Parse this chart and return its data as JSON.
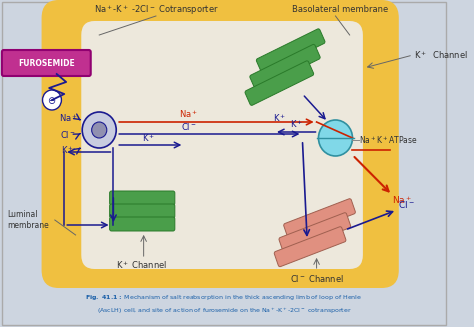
{
  "fig_bg": "#cdd5e0",
  "outer_cell_color": "#f0c040",
  "outer_cell_edge": "#d4a020",
  "inner_cell_color": "#ede8dc",
  "furosemide_box_color": "#c03090",
  "furosemide_text": "FUROSEMIDE",
  "title_top_left": "Na$^+$-K$^+$ -2Cl$^-$ Cotransporter",
  "title_top_right": "Basolateral membrane",
  "label_luminal": "Luminal\nmembrane",
  "label_k_channel_bottom": "K$^+$ Channel",
  "label_cl_channel": "Cl$^-$ Channel",
  "label_k_channel_top": "K$^+$  Channel",
  "label_na_k_atpase": "Na$^+$K$^+$ATPase",
  "caption_bold": "Fig. 41.1:",
  "caption_rest": " Mechanism of salt reabsorption in the thick ascending limb of loop of Henle\n(AscLH) cell, and site of action of furosemide on the Na$^+$-K$^+$-2Cl$^-$ cotransporter",
  "arrow_blue": "#1a1a90",
  "arrow_red": "#cc2200",
  "green_color": "#4a9e4a",
  "green_dark": "#2a7a2a",
  "pink_color": "#e09080",
  "pink_dark": "#a06050",
  "cyan_color": "#80d8e8",
  "gray_pump": "#b0b8cc",
  "caption_color": "#1a5fa8",
  "label_color": "#333333",
  "line_color": "#888888"
}
